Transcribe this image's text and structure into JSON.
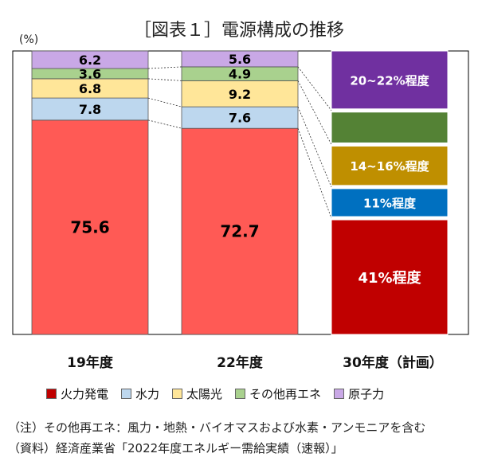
{
  "chart_data": {
    "type": "bar",
    "stacked": true,
    "title": "［図表１］電源構成の推移",
    "unit_label": "(%)",
    "categories": [
      "19年度",
      "22年度",
      "30年度（計画）"
    ],
    "series": [
      {
        "name": "火力発電",
        "color": "#ff5a55",
        "color_plan": "#c00000",
        "values": [
          75.6,
          72.7,
          41
        ],
        "labels": [
          "75.6",
          "72.7",
          "41%程度"
        ]
      },
      {
        "name": "水力",
        "color": "#bdd7ee",
        "color_plan": "#0070c0",
        "values": [
          7.8,
          7.6,
          11
        ],
        "labels": [
          "7.8",
          "7.6",
          "11%程度"
        ]
      },
      {
        "name": "太陽光",
        "color": "#ffe699",
        "color_plan": "#bf8f00",
        "values": [
          6.8,
          9.2,
          15
        ],
        "labels": [
          "6.8",
          "9.2",
          "14~16%程度"
        ]
      },
      {
        "name": "その他再エネ",
        "color": "#a9d18e",
        "color_plan": "#548235",
        "values": [
          3.6,
          4.9,
          12
        ],
        "labels": [
          "3.6",
          "4.9",
          ""
        ]
      },
      {
        "name": "原子力",
        "color": "#c9a8e6",
        "color_plan": "#7030a0",
        "values": [
          6.2,
          5.6,
          21
        ],
        "labels": [
          "6.2",
          "5.6",
          "20~22%程度"
        ]
      }
    ]
  },
  "notes": {
    "note_line": "（注）その他再エネ：風力・地熱・バイオマスおよび水素・アンモニアを含む",
    "source_line": "（資料）経済産業省「2022年度エネルギー需給実績（速報）」"
  }
}
